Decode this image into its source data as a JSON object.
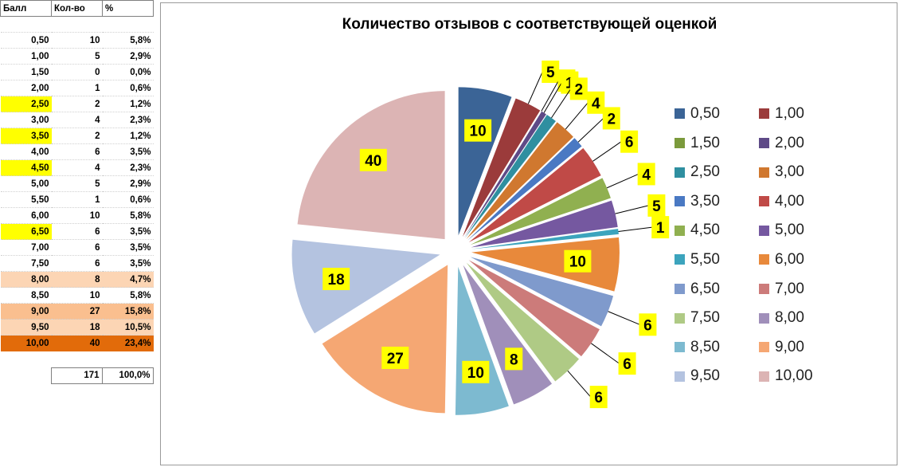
{
  "sheet": {
    "headers": [
      "Балл",
      "Кол-во",
      "%"
    ],
    "rows": [
      {
        "score": "0,50",
        "count": "10",
        "pct": "5,8%",
        "hl": ""
      },
      {
        "score": "1,00",
        "count": "5",
        "pct": "2,9%",
        "hl": ""
      },
      {
        "score": "1,50",
        "count": "0",
        "pct": "0,0%",
        "hl": ""
      },
      {
        "score": "2,00",
        "count": "1",
        "pct": "0,6%",
        "hl": ""
      },
      {
        "score": "2,50",
        "count": "2",
        "pct": "1,2%",
        "hl": "#ffff00"
      },
      {
        "score": "3,00",
        "count": "4",
        "pct": "2,3%",
        "hl": ""
      },
      {
        "score": "3,50",
        "count": "2",
        "pct": "1,2%",
        "hl": "#ffff00"
      },
      {
        "score": "4,00",
        "count": "6",
        "pct": "3,5%",
        "hl": ""
      },
      {
        "score": "4,50",
        "count": "4",
        "pct": "2,3%",
        "hl": "#ffff00"
      },
      {
        "score": "5,00",
        "count": "5",
        "pct": "2,9%",
        "hl": ""
      },
      {
        "score": "5,50",
        "count": "1",
        "pct": "0,6%",
        "hl": ""
      },
      {
        "score": "6,00",
        "count": "10",
        "pct": "5,8%",
        "hl": ""
      },
      {
        "score": "6,50",
        "count": "6",
        "pct": "3,5%",
        "hl": "#ffff00"
      },
      {
        "score": "7,00",
        "count": "6",
        "pct": "3,5%",
        "hl": ""
      },
      {
        "score": "7,50",
        "count": "6",
        "pct": "3,5%",
        "hl": ""
      },
      {
        "score": "8,00",
        "count": "8",
        "pct": "4,7%",
        "hl": "#fcd5b4"
      },
      {
        "score": "8,50",
        "count": "10",
        "pct": "5,8%",
        "hl": ""
      },
      {
        "score": "9,00",
        "count": "27",
        "pct": "15,8%",
        "hl": "#fabf8f"
      },
      {
        "score": "9,50",
        "count": "18",
        "pct": "10,5%",
        "hl": "#fcd5b4"
      },
      {
        "score": "10,00",
        "count": "40",
        "pct": "23,4%",
        "hl": "#e26b0a"
      }
    ],
    "total_count": "171",
    "total_pct": "100,0%"
  },
  "chart_data": {
    "type": "pie",
    "title": "Количество отзывов с соответствующей оценкой",
    "categories": [
      "0,50",
      "1,00",
      "1,50",
      "2,00",
      "2,50",
      "3,00",
      "3,50",
      "4,00",
      "4,50",
      "5,00",
      "5,50",
      "6,00",
      "6,50",
      "7,00",
      "7,50",
      "8,00",
      "8,50",
      "9,00",
      "9,50",
      "10,00"
    ],
    "values": [
      10,
      5,
      0,
      1,
      2,
      4,
      2,
      6,
      4,
      5,
      1,
      10,
      6,
      6,
      6,
      8,
      10,
      27,
      18,
      40
    ],
    "colors": [
      "#3b6496",
      "#9b3b3b",
      "#7b9a3c",
      "#5e4a87",
      "#2f8fa0",
      "#d0782f",
      "#4a79c3",
      "#c04a47",
      "#90b050",
      "#7558a0",
      "#3ca4bd",
      "#e8893b",
      "#7f9acc",
      "#cc7b7a",
      "#afca85",
      "#a08fba",
      "#7dbad0",
      "#f5a773",
      "#b4c3e0",
      "#dcb4b4"
    ],
    "data_label_bg": "#ffff00",
    "legend_position": "right"
  }
}
